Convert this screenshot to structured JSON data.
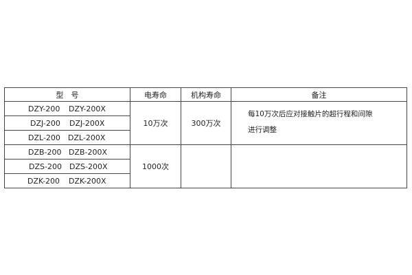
{
  "table": {
    "headers": [
      "型　号",
      "电寿命",
      "机构寿命",
      "备注"
    ],
    "rows": [
      {
        "model_a": "DZY-200",
        "model_b": "DZY-200X"
      },
      {
        "model_a": "DZJ-200",
        "model_b": "DZJ-200X"
      },
      {
        "model_a": "DZL-200",
        "model_b": "DZL-200X"
      },
      {
        "model_a": "DZB-200",
        "model_b": "DZB-200X"
      },
      {
        "model_a": "DZS-200",
        "model_b": "DZS-200X"
      },
      {
        "model_a": "DZK-200",
        "model_b": "DZK-200X"
      }
    ],
    "group1": {
      "electrical_life": "10万次",
      "mechanical_life": "300万次",
      "note_line1": "每10万次后应对接触片的超行程和间隙",
      "note_line2": "进行调整"
    },
    "group2": {
      "electrical_life": "1000次",
      "mechanical_life": "",
      "note_line1": "",
      "note_line2": ""
    }
  }
}
